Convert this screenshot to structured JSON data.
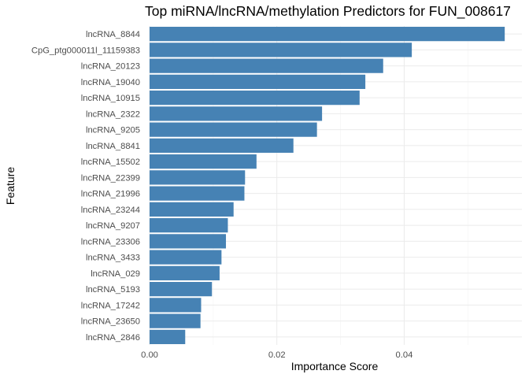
{
  "chart_data": {
    "type": "bar",
    "orientation": "horizontal",
    "title": "Top miRNA/lncRNA/methylation Predictors for FUN_008617",
    "xlabel": "Importance Score",
    "ylabel": "Feature",
    "xlim": [
      0,
      0.0585
    ],
    "xticks": [
      0.0,
      0.02,
      0.04
    ],
    "xtick_labels": [
      "0.00",
      "0.02",
      "0.04"
    ],
    "grid": true,
    "legend": "none",
    "bar_color": "#4682B4",
    "categories": [
      "lncRNA_8844",
      "CpG_ptg000011l_11159383",
      "lncRNA_20123",
      "lncRNA_19040",
      "lncRNA_10915",
      "lncRNA_2322",
      "lncRNA_9205",
      "lncRNA_8841",
      "lncRNA_15502",
      "lncRNA_22399",
      "lncRNA_21996",
      "lncRNA_23244",
      "lncRNA_9207",
      "lncRNA_23306",
      "lncRNA_3433",
      "lncRNA_029",
      "lncRNA_5193",
      "lncRNA_17242",
      "lncRNA_23650",
      "lncRNA_2846"
    ],
    "values": [
      0.0558,
      0.0412,
      0.0367,
      0.0339,
      0.033,
      0.0271,
      0.0263,
      0.0226,
      0.0168,
      0.015,
      0.0149,
      0.0132,
      0.0123,
      0.012,
      0.0113,
      0.011,
      0.0098,
      0.0081,
      0.008,
      0.0056
    ]
  }
}
